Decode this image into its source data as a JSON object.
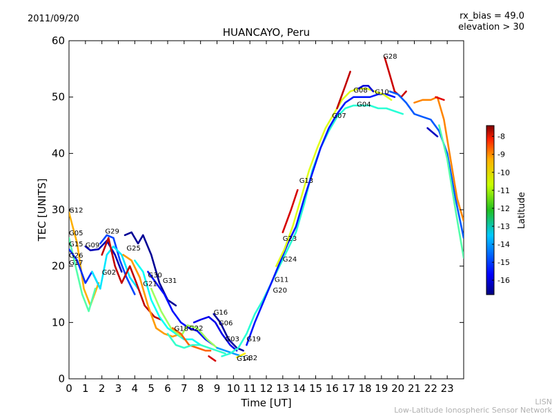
{
  "header": {
    "date": "2011/09/20",
    "rx_bias": "rx_bias = 49.0",
    "elevation": "elevation > 30"
  },
  "footer": {
    "org_short": "LISN",
    "org_long": "Low-Latitude Ionospheric Sensor Network"
  },
  "chart_data": {
    "type": "scatter",
    "title": "HUANCAYO, Peru",
    "xlabel": "Time [UT]",
    "ylabel": "TEC [UNITS]",
    "xlim": [
      0,
      24
    ],
    "ylim": [
      0,
      60
    ],
    "x_ticks": [
      "0",
      "1",
      "2",
      "3",
      "4",
      "5",
      "6",
      "7",
      "8",
      "9",
      "10",
      "11",
      "12",
      "13",
      "14",
      "15",
      "16",
      "17",
      "18",
      "19",
      "20",
      "21",
      "22",
      "23"
    ],
    "y_ticks": [
      "0",
      "10",
      "20",
      "30",
      "40",
      "50",
      "60"
    ],
    "colorbar": {
      "label": "Latitude",
      "range": [
        -16.8,
        -7.4
      ],
      "ticks": [
        "-8",
        "-9",
        "-10",
        "-11",
        "-12",
        "-13",
        "-14",
        "-15",
        "-16"
      ],
      "tick_values": [
        -8,
        -9,
        -10,
        -11,
        -12,
        -13,
        -14,
        -15,
        -16
      ]
    },
    "satellite_labels": [
      {
        "text": "G12",
        "x": 0.0,
        "y": 29.5
      },
      {
        "text": "G05",
        "x": 0.0,
        "y": 25.5
      },
      {
        "text": "G15",
        "x": 0.0,
        "y": 23.5
      },
      {
        "text": "G09",
        "x": 1.0,
        "y": 23.3
      },
      {
        "text": "G26",
        "x": 0.0,
        "y": 21.5
      },
      {
        "text": "G17",
        "x": 0.0,
        "y": 20.2
      },
      {
        "text": "G29",
        "x": 2.2,
        "y": 25.8
      },
      {
        "text": "G02",
        "x": 2.0,
        "y": 18.5
      },
      {
        "text": "G25",
        "x": 3.5,
        "y": 22.8
      },
      {
        "text": "G30",
        "x": 4.8,
        "y": 18.0
      },
      {
        "text": "G21",
        "x": 4.5,
        "y": 16.5
      },
      {
        "text": "G31",
        "x": 5.7,
        "y": 17.0
      },
      {
        "text": "G18",
        "x": 6.4,
        "y": 8.5
      },
      {
        "text": "G22",
        "x": 7.3,
        "y": 8.6
      },
      {
        "text": "G16",
        "x": 8.8,
        "y": 11.4
      },
      {
        "text": "G06",
        "x": 9.1,
        "y": 9.5
      },
      {
        "text": "G03",
        "x": 9.5,
        "y": 6.7
      },
      {
        "text": "G19",
        "x": 10.8,
        "y": 6.7
      },
      {
        "text": "G14",
        "x": 10.2,
        "y": 3.2
      },
      {
        "text": "G32",
        "x": 10.6,
        "y": 3.3
      },
      {
        "text": "G20",
        "x": 12.4,
        "y": 15.3
      },
      {
        "text": "G11",
        "x": 12.5,
        "y": 17.2
      },
      {
        "text": "G24",
        "x": 13.0,
        "y": 20.8
      },
      {
        "text": "G23",
        "x": 13.0,
        "y": 24.5
      },
      {
        "text": "G13",
        "x": 14.0,
        "y": 34.8
      },
      {
        "text": "G07",
        "x": 16.0,
        "y": 46.3
      },
      {
        "text": "G04",
        "x": 17.5,
        "y": 48.3
      },
      {
        "text": "G08",
        "x": 17.3,
        "y": 50.8
      },
      {
        "text": "G10",
        "x": 18.6,
        "y": 50.5
      },
      {
        "text": "G28",
        "x": 19.1,
        "y": 56.8
      }
    ],
    "series": [
      {
        "name": "A",
        "lat": -10.2,
        "points": [
          [
            0,
            29.5
          ],
          [
            0.5,
            24
          ],
          [
            0.9,
            16
          ],
          [
            1.3,
            13
          ],
          [
            1.8,
            17
          ]
        ]
      },
      {
        "name": "B",
        "lat": -12.5,
        "points": [
          [
            0,
            25
          ],
          [
            0.4,
            20
          ],
          [
            0.8,
            15
          ],
          [
            1.2,
            12
          ],
          [
            1.6,
            16
          ]
        ]
      },
      {
        "name": "C",
        "lat": -15.2,
        "points": [
          [
            0,
            23
          ],
          [
            0.5,
            21
          ],
          [
            1.0,
            17
          ],
          [
            1.4,
            19
          ],
          [
            1.9,
            16
          ]
        ]
      },
      {
        "name": "D",
        "lat": -16.3,
        "points": [
          [
            1.0,
            23.5
          ],
          [
            1.3,
            22.8
          ],
          [
            1.8,
            23
          ],
          [
            2.3,
            24.5
          ],
          [
            2.8,
            22
          ],
          [
            3.2,
            19
          ]
        ]
      },
      {
        "name": "E",
        "lat": -15.0,
        "points": [
          [
            1.9,
            24
          ],
          [
            2.3,
            25.5
          ],
          [
            2.7,
            25
          ],
          [
            3.1,
            21
          ],
          [
            3.5,
            18
          ],
          [
            4.0,
            15
          ]
        ]
      },
      {
        "name": "F",
        "lat": -13.5,
        "points": [
          [
            1.4,
            19
          ],
          [
            1.9,
            16
          ],
          [
            2.3,
            22
          ],
          [
            2.7,
            23.5
          ],
          [
            3.2,
            22
          ],
          [
            3.7,
            18
          ],
          [
            4.2,
            16
          ]
        ]
      },
      {
        "name": "G",
        "lat": -16.6,
        "points": [
          [
            3.4,
            25.5
          ],
          [
            3.8,
            26
          ],
          [
            4.2,
            24
          ],
          [
            4.5,
            25.5
          ],
          [
            5.0,
            22
          ],
          [
            5.5,
            17
          ],
          [
            6.0,
            14
          ],
          [
            6.5,
            13
          ]
        ]
      },
      {
        "name": "H",
        "lat": -8.0,
        "points": [
          [
            2.0,
            22
          ],
          [
            2.4,
            25
          ],
          [
            2.8,
            20
          ],
          [
            3.2,
            17
          ],
          [
            3.7,
            20
          ],
          [
            4.1,
            17
          ],
          [
            4.6,
            13
          ],
          [
            5.2,
            11
          ],
          [
            5.6,
            10.5
          ]
        ]
      },
      {
        "name": "I",
        "lat": -10.0,
        "points": [
          [
            3.3,
            22
          ],
          [
            3.8,
            21
          ],
          [
            4.3,
            18
          ],
          [
            4.8,
            13
          ],
          [
            5.3,
            9
          ],
          [
            5.8,
            8
          ],
          [
            6.3,
            7.5
          ],
          [
            6.8,
            8
          ]
        ]
      },
      {
        "name": "J",
        "lat": -13.2,
        "points": [
          [
            4.0,
            21
          ],
          [
            4.5,
            19
          ],
          [
            5.0,
            14
          ],
          [
            5.5,
            11
          ],
          [
            6.0,
            9
          ],
          [
            6.5,
            8
          ],
          [
            7.0,
            7
          ],
          [
            7.5,
            7
          ],
          [
            8.0,
            6
          ]
        ]
      },
      {
        "name": "K",
        "lat": -15.5,
        "points": [
          [
            4.8,
            19
          ],
          [
            5.3,
            17
          ],
          [
            5.8,
            15
          ],
          [
            6.3,
            12
          ],
          [
            6.8,
            10
          ],
          [
            7.3,
            9
          ],
          [
            7.8,
            8.5
          ],
          [
            8.3,
            7
          ],
          [
            8.8,
            6
          ]
        ]
      },
      {
        "name": "L",
        "lat": -11.8,
        "points": [
          [
            5.0,
            16
          ],
          [
            5.6,
            12
          ],
          [
            6.2,
            9
          ],
          [
            6.8,
            7.5
          ],
          [
            7.2,
            9.5
          ],
          [
            7.8,
            9
          ],
          [
            8.4,
            7
          ],
          [
            9.0,
            5.5
          ]
        ]
      },
      {
        "name": "M",
        "lat": -9.5,
        "points": [
          [
            6.3,
            9
          ],
          [
            6.8,
            8
          ],
          [
            7.3,
            6
          ],
          [
            7.8,
            5.5
          ],
          [
            8.3,
            5
          ],
          [
            8.6,
            5
          ]
        ]
      },
      {
        "name": "N",
        "lat": -12.8,
        "points": [
          [
            6.0,
            8
          ],
          [
            6.5,
            6
          ],
          [
            7.0,
            5.5
          ],
          [
            7.5,
            6
          ],
          [
            8.0,
            6
          ],
          [
            8.5,
            5.5
          ],
          [
            9.0,
            5
          ],
          [
            9.5,
            4.5
          ]
        ]
      },
      {
        "name": "O",
        "lat": -15.8,
        "points": [
          [
            7.6,
            10
          ],
          [
            8.0,
            10.5
          ],
          [
            8.5,
            11
          ],
          [
            8.9,
            10
          ],
          [
            9.3,
            8
          ],
          [
            9.8,
            6
          ],
          [
            10.2,
            5
          ]
        ]
      },
      {
        "name": "P",
        "lat": -16.5,
        "points": [
          [
            8.8,
            11.5
          ],
          [
            9.2,
            10
          ],
          [
            9.7,
            7
          ],
          [
            10.2,
            5.5
          ],
          [
            10.6,
            5
          ]
        ]
      },
      {
        "name": "Q",
        "lat": -14.2,
        "points": [
          [
            9.0,
            5.5
          ],
          [
            9.5,
            5
          ],
          [
            10.0,
            4.5
          ],
          [
            10.5,
            4
          ]
        ]
      },
      {
        "name": "R",
        "lat": -8.2,
        "points": [
          [
            8.5,
            4
          ],
          [
            8.9,
            3.2
          ]
        ]
      },
      {
        "name": "S",
        "lat": -10.8,
        "points": [
          [
            10.2,
            3.8
          ],
          [
            10.7,
            4.5
          ]
        ]
      },
      {
        "name": "T",
        "lat": -12.9,
        "points": [
          [
            9.3,
            4
          ],
          [
            9.8,
            4.5
          ],
          [
            10.3,
            5.5
          ],
          [
            10.8,
            8
          ],
          [
            11.3,
            11.5
          ],
          [
            11.8,
            14
          ],
          [
            12.3,
            17
          ],
          [
            12.8,
            20
          ],
          [
            13.3,
            23
          ],
          [
            13.8,
            26
          ],
          [
            14.3,
            31
          ],
          [
            14.8,
            37
          ],
          [
            15.3,
            41
          ],
          [
            15.8,
            44
          ],
          [
            16.3,
            46.5
          ],
          [
            16.8,
            48
          ],
          [
            17.3,
            48.5
          ],
          [
            17.8,
            48.5
          ],
          [
            18.3,
            48.5
          ],
          [
            18.8,
            48
          ],
          [
            19.3,
            48
          ],
          [
            19.8,
            47.5
          ],
          [
            20.3,
            47
          ]
        ]
      },
      {
        "name": "U",
        "lat": -15.4,
        "points": [
          [
            10.8,
            6
          ],
          [
            11.3,
            10
          ],
          [
            11.8,
            13.5
          ],
          [
            12.3,
            17
          ],
          [
            12.8,
            20.5
          ],
          [
            13.3,
            24
          ],
          [
            13.8,
            27
          ],
          [
            14.3,
            32
          ],
          [
            14.8,
            36.5
          ],
          [
            15.3,
            41
          ],
          [
            15.8,
            44.5
          ],
          [
            16.3,
            47
          ],
          [
            16.8,
            49
          ],
          [
            17.3,
            50
          ],
          [
            17.8,
            50
          ],
          [
            18.3,
            50
          ],
          [
            18.8,
            50.5
          ],
          [
            19.3,
            50.5
          ],
          [
            19.8,
            50
          ]
        ]
      },
      {
        "name": "V",
        "lat": -11.2,
        "points": [
          [
            12.6,
            20
          ],
          [
            13.1,
            23
          ],
          [
            13.6,
            27
          ],
          [
            14.1,
            32
          ],
          [
            14.6,
            37
          ],
          [
            15.1,
            41
          ],
          [
            15.6,
            44.5
          ],
          [
            16.1,
            47
          ],
          [
            16.6,
            49.5
          ],
          [
            17.1,
            51
          ],
          [
            17.6,
            51.5
          ],
          [
            18.1,
            51.5
          ],
          [
            18.6,
            51
          ],
          [
            19.1,
            50.5
          ],
          [
            19.6,
            49.5
          ]
        ]
      },
      {
        "name": "W",
        "lat": -8.2,
        "points": [
          [
            13.0,
            26
          ],
          [
            13.5,
            30
          ],
          [
            13.9,
            33.5
          ]
        ]
      },
      {
        "name": "X",
        "lat": -8.0,
        "points": [
          [
            16.3,
            48
          ],
          [
            16.8,
            52
          ],
          [
            17.1,
            54.5
          ]
        ]
      },
      {
        "name": "Y",
        "lat": -16.0,
        "points": [
          [
            17.6,
            51.5
          ],
          [
            17.9,
            52
          ],
          [
            18.2,
            52
          ],
          [
            18.5,
            51
          ]
        ]
      },
      {
        "name": "Z",
        "lat": -8.1,
        "points": [
          [
            19.2,
            57
          ],
          [
            19.5,
            54
          ],
          [
            19.8,
            51
          ],
          [
            20.2,
            50
          ],
          [
            20.5,
            51
          ]
        ]
      },
      {
        "name": "AA",
        "lat": -14.8,
        "points": [
          [
            19.5,
            51
          ],
          [
            20.0,
            50.5
          ],
          [
            20.5,
            49
          ],
          [
            21.0,
            47
          ],
          [
            21.5,
            46.5
          ],
          [
            22.0,
            46
          ],
          [
            22.5,
            44
          ],
          [
            23.0,
            40
          ],
          [
            23.5,
            32
          ],
          [
            24.0,
            25
          ]
        ]
      },
      {
        "name": "AB",
        "lat": -9.8,
        "points": [
          [
            21.0,
            49
          ],
          [
            21.5,
            49.5
          ],
          [
            22.0,
            49.5
          ],
          [
            22.4,
            50
          ],
          [
            22.8,
            46
          ],
          [
            23.2,
            39
          ],
          [
            23.6,
            32
          ],
          [
            24.0,
            28
          ]
        ]
      },
      {
        "name": "AC",
        "lat": -12.5,
        "points": [
          [
            22.5,
            45
          ],
          [
            23.0,
            39
          ],
          [
            23.5,
            30
          ],
          [
            24.0,
            21.5
          ]
        ]
      },
      {
        "name": "AD",
        "lat": -16.2,
        "points": [
          [
            21.8,
            44.5
          ],
          [
            22.4,
            43
          ]
        ]
      },
      {
        "name": "AE",
        "lat": -8.3,
        "points": [
          [
            22.3,
            50
          ],
          [
            22.8,
            49.5
          ]
        ]
      }
    ]
  }
}
